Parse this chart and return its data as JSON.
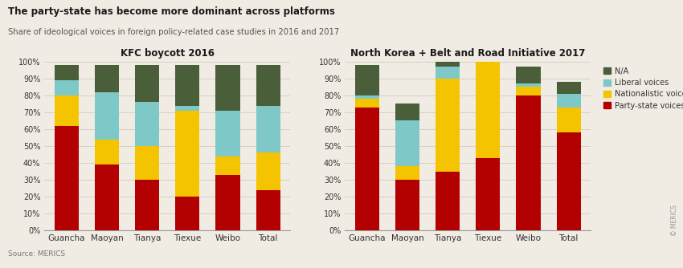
{
  "title": "The party-state has become more dominant across platforms",
  "subtitle": "Share of ideological voices in foreign policy-related case studies in 2016 and 2017",
  "source": "Source: MERICS",
  "chart1_title": "KFC boycott 2016",
  "chart2_title": "North Korea + Belt and Road Initiative 2017",
  "categories": [
    "Guancha",
    "Maoyan",
    "Tianya",
    "Tiexue",
    "Weibo",
    "Total"
  ],
  "legend_labels": [
    "N/A",
    "Liberal voices",
    "Nationalistic voices",
    "Party-state voices"
  ],
  "colors": {
    "party_state": "#b30000",
    "nationalistic": "#f5c400",
    "liberal": "#7ec8c8",
    "na": "#4a5e3a"
  },
  "chart1": {
    "party_state": [
      62,
      39,
      30,
      20,
      33,
      24
    ],
    "nationalistic": [
      18,
      15,
      20,
      51,
      11,
      22
    ],
    "liberal": [
      9,
      28,
      26,
      3,
      27,
      28
    ],
    "na": [
      9,
      16,
      22,
      24,
      27,
      24
    ]
  },
  "chart2": {
    "party_state": [
      73,
      30,
      35,
      43,
      80,
      58
    ],
    "nationalistic": [
      5,
      8,
      55,
      57,
      5,
      15
    ],
    "liberal": [
      2,
      27,
      7,
      0,
      2,
      8
    ],
    "na": [
      18,
      10,
      3,
      0,
      10,
      7
    ]
  },
  "background_color": "#f0ece4",
  "ylim": [
    0,
    100
  ],
  "yticks": [
    0,
    10,
    20,
    30,
    40,
    50,
    60,
    70,
    80,
    90,
    100
  ]
}
